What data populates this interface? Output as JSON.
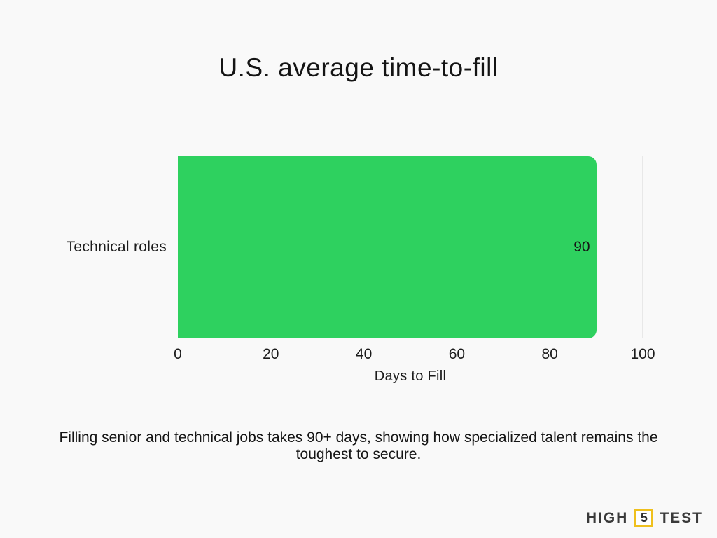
{
  "page": {
    "background_color": "#f9f9f9"
  },
  "chart_data": {
    "type": "bar",
    "orientation": "horizontal",
    "title": "U.S. average time-to-fill",
    "categories": [
      "Technical roles"
    ],
    "values": [
      90
    ],
    "value_labels": [
      "90"
    ],
    "xlabel": "Days to Fill",
    "ylabel": "",
    "x_ticks": [
      0,
      20,
      40,
      60,
      80,
      100
    ],
    "xlim": [
      0,
      100
    ],
    "bar_color": "#2ed15f",
    "grid": "single end gridline at x=100",
    "legend": "none",
    "value_label_position": "inside-end"
  },
  "caption": {
    "text": "Filling senior and technical jobs takes 90+ days, showing how specialized talent remains the toughest to secure."
  },
  "logo": {
    "left_text": "HIGH",
    "box_text": "5",
    "right_text": "TEST",
    "accent_color": "#efc01d"
  }
}
